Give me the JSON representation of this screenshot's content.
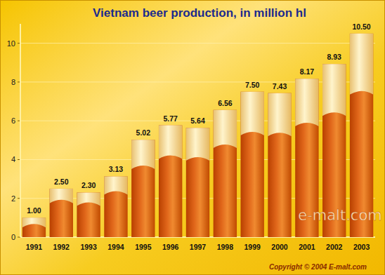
{
  "chart_data": {
    "type": "bar",
    "title": "Vietnam beer production, in million hl",
    "categories": [
      "1991",
      "1992",
      "1993",
      "1994",
      "1995",
      "1996",
      "1997",
      "1998",
      "1999",
      "2000",
      "2001",
      "2002",
      "2003"
    ],
    "values": [
      1.0,
      2.5,
      2.3,
      3.13,
      5.02,
      5.77,
      5.64,
      6.56,
      7.5,
      7.43,
      8.17,
      8.93,
      10.5
    ],
    "value_labels": [
      "1.00",
      "2.50",
      "2.30",
      "3.13",
      "5.02",
      "5.77",
      "5.64",
      "6.56",
      "7.50",
      "7.43",
      "8.17",
      "8.93",
      "10.50"
    ],
    "color": "#e0661a",
    "ylim": [
      0,
      11
    ],
    "yticks": [
      0,
      2,
      4,
      6,
      8,
      10
    ],
    "grid": true,
    "data_labels": true,
    "annotations": [
      "e-malt.com",
      "Copyright © 2004 E-malt.com"
    ]
  }
}
